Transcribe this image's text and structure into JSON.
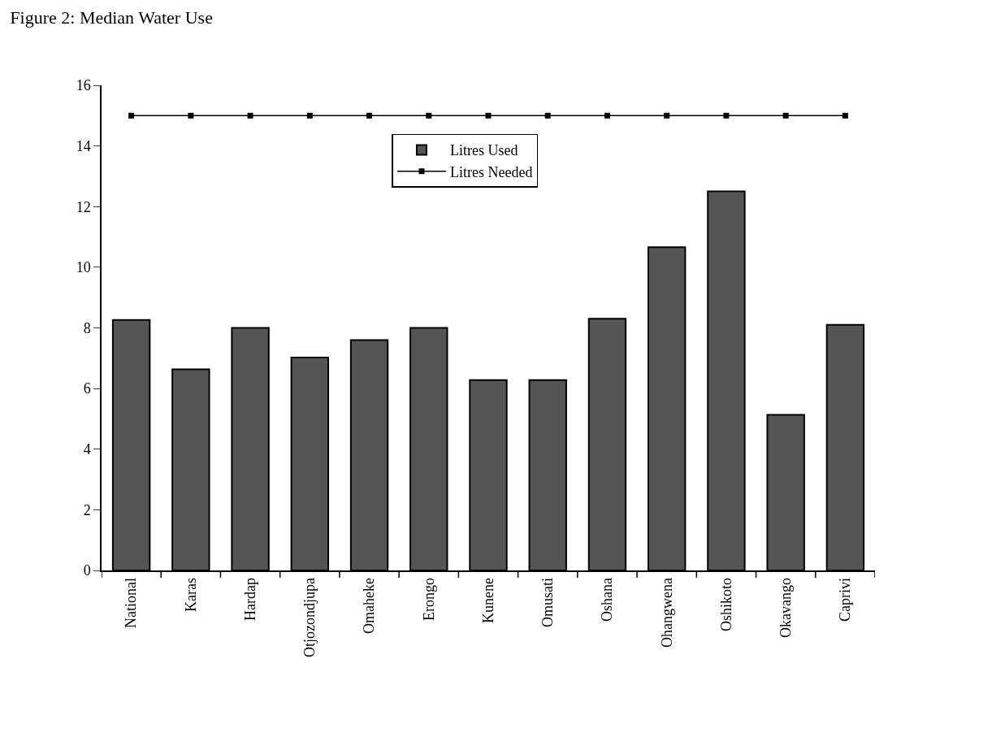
{
  "chart_data": {
    "type": "bar",
    "title": "Figure 2: Median Water Use",
    "categories": [
      "National",
      "Karas",
      "Hardap",
      "Otjozondjupa",
      "Omaheke",
      "Erongo",
      "Kunene",
      "Omusati",
      "Oshana",
      "Ohangwena",
      "Oshikoto",
      "Okavango",
      "Caprivi"
    ],
    "series": [
      {
        "name": "Litres Used",
        "color": "#555555",
        "values": [
          8.26,
          6.63,
          8.0,
          7.02,
          7.6,
          8.0,
          6.28,
          6.28,
          8.3,
          10.66,
          12.5,
          5.13,
          8.1
        ]
      },
      {
        "name": "Litres Needed",
        "type": "line",
        "color": "#000000",
        "marker": "square",
        "values": [
          15,
          15,
          15,
          15,
          15,
          15,
          15,
          15,
          15,
          15,
          15,
          15,
          15
        ]
      }
    ],
    "ylim": [
      0,
      16
    ],
    "yticks": [
      0,
      2,
      4,
      6,
      8,
      10,
      12,
      14,
      16
    ],
    "grid": false,
    "legend": "top"
  }
}
